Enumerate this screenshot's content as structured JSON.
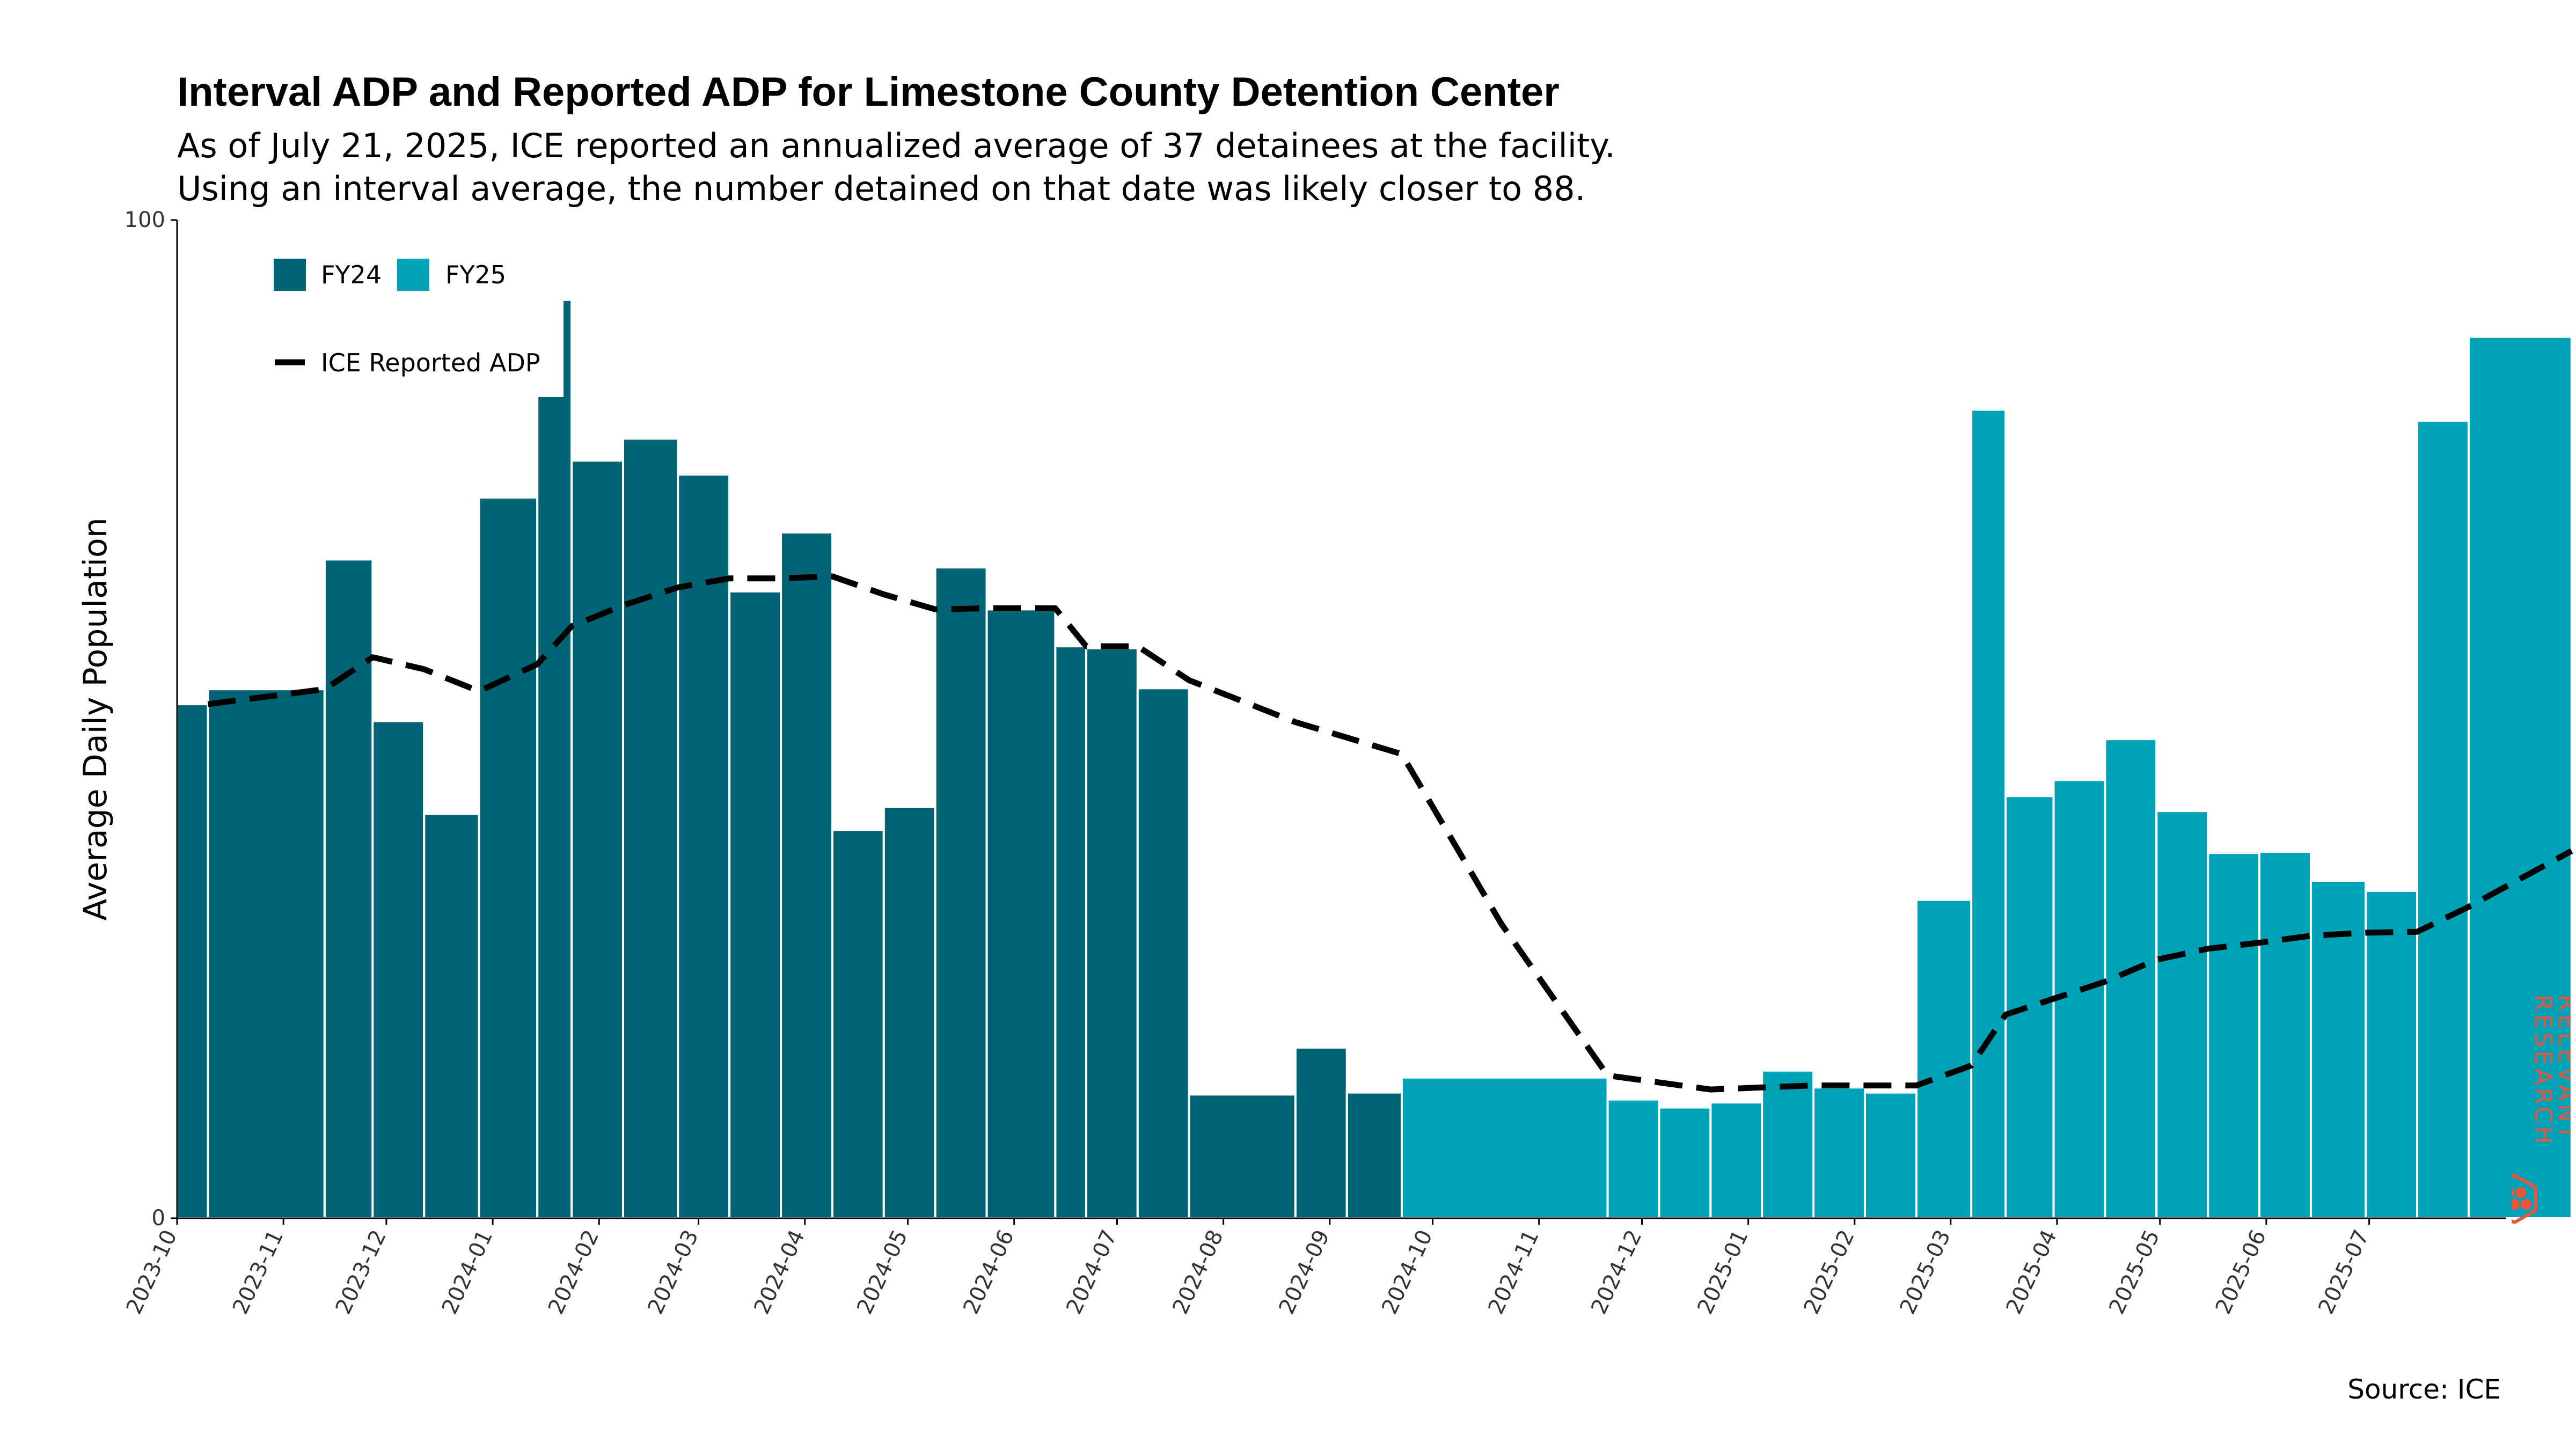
{
  "chart_data": {
    "type": "bar",
    "title": "Interval ADP and Reported ADP for Limestone County Detention Center",
    "subtitle_lines": [
      "As of July 21, 2025, ICE reported an annualized average of 37 detainees at the facility.",
      "Using an interval average, the number detained on that date was likely closer to 88."
    ],
    "ylabel": "Average Daily Population",
    "ylim": [
      0,
      100
    ],
    "y_ticks": [
      "0",
      "100"
    ],
    "x_ticks": [
      "2023-10",
      "2023-11",
      "2023-12",
      "2024-01",
      "2024-02",
      "2024-03",
      "2024-04",
      "2024-05",
      "2024-06",
      "2024-07",
      "2024-08",
      "2024-09",
      "2024-10",
      "2024-11",
      "2024-12",
      "2025-01",
      "2025-02",
      "2025-03",
      "2025-04",
      "2025-05",
      "2025-06",
      "2025-07"
    ],
    "x_range": [
      "2023-10-01",
      "2025-07-30"
    ],
    "legend": {
      "position": "top-left",
      "fy24_label": "FY24",
      "fy25_label": "FY25",
      "line_label": "ICE Reported ADP"
    },
    "colors": {
      "FY24": "#006474",
      "FY25": "#00A2B8",
      "line": "#000000",
      "brand": "#E8553A"
    },
    "bars": [
      {
        "start": "2023-10-01",
        "end": "2023-10-10",
        "value": 51.5,
        "fy": "FY24"
      },
      {
        "start": "2023-10-10",
        "end": "2023-11-13",
        "value": 53.0,
        "fy": "FY24"
      },
      {
        "start": "2023-11-13",
        "end": "2023-11-27",
        "value": 66.0,
        "fy": "FY24"
      },
      {
        "start": "2023-11-27",
        "end": "2023-12-12",
        "value": 49.8,
        "fy": "FY24"
      },
      {
        "start": "2023-12-12",
        "end": "2023-12-28",
        "value": 40.5,
        "fy": "FY24"
      },
      {
        "start": "2023-12-28",
        "end": "2024-01-14",
        "value": 72.2,
        "fy": "FY24"
      },
      {
        "start": "2024-01-14",
        "end": "2024-01-24",
        "value": 92.0,
        "fy": "FY24"
      },
      {
        "start": "2024-01-24",
        "end": "2024-02-08",
        "value": 75.9,
        "fy": "FY24"
      },
      {
        "start": "2024-02-08",
        "end": "2024-02-24",
        "value": 78.1,
        "fy": "FY24"
      },
      {
        "start": "2024-02-24",
        "end": "2024-03-10",
        "value": 74.5,
        "fy": "FY24"
      },
      {
        "start": "2024-03-10",
        "end": "2024-03-25",
        "value": 62.8,
        "fy": "FY24"
      },
      {
        "start": "2024-03-25",
        "end": "2024-04-09",
        "value": 68.7,
        "fy": "FY24"
      },
      {
        "start": "2024-04-09",
        "end": "2024-04-24",
        "value": 38.9,
        "fy": "FY24"
      },
      {
        "start": "2024-04-24",
        "end": "2024-05-09",
        "value": 41.2,
        "fy": "FY24"
      },
      {
        "start": "2024-05-09",
        "end": "2024-05-24",
        "value": 65.2,
        "fy": "FY24"
      },
      {
        "start": "2024-05-24",
        "end": "2024-06-13",
        "value": 61.0,
        "fy": "FY24"
      },
      {
        "start": "2024-06-13",
        "end": "2024-06-22",
        "value": 57.3,
        "fy": "FY24"
      },
      {
        "start": "2024-06-22",
        "end": "2024-07-07",
        "value": 57.1,
        "fy": "FY24"
      },
      {
        "start": "2024-07-07",
        "end": "2024-07-22",
        "value": 53.1,
        "fy": "FY24"
      },
      {
        "start": "2024-07-22",
        "end": "2024-08-22",
        "value": 12.4,
        "fy": "FY24"
      },
      {
        "start": "2024-08-22",
        "end": "2024-09-06",
        "value": 17.1,
        "fy": "FY24"
      },
      {
        "start": "2024-09-06",
        "end": "2024-09-22",
        "value": 12.6,
        "fy": "FY24"
      },
      {
        "start": "2024-09-22",
        "end": "2024-11-21",
        "value": 14.1,
        "fy": "FY25"
      },
      {
        "start": "2024-11-21",
        "end": "2024-12-06",
        "value": 11.9,
        "fy": "FY25"
      },
      {
        "start": "2024-12-06",
        "end": "2024-12-21",
        "value": 11.1,
        "fy": "FY25"
      },
      {
        "start": "2024-12-21",
        "end": "2025-01-05",
        "value": 11.6,
        "fy": "FY25"
      },
      {
        "start": "2025-01-05",
        "end": "2025-01-20",
        "value": 14.8,
        "fy": "FY25"
      },
      {
        "start": "2025-01-20",
        "end": "2025-02-04",
        "value": 13.1,
        "fy": "FY25"
      },
      {
        "start": "2025-02-04",
        "end": "2025-02-19",
        "value": 12.6,
        "fy": "FY25"
      },
      {
        "start": "2025-02-19",
        "end": "2025-03-07",
        "value": 31.9,
        "fy": "FY25"
      },
      {
        "start": "2025-03-07",
        "end": "2025-03-17",
        "value": 81.0,
        "fy": "FY25"
      },
      {
        "start": "2025-03-17",
        "end": "2025-03-31",
        "value": 42.3,
        "fy": "FY25"
      },
      {
        "start": "2025-03-31",
        "end": "2025-04-15",
        "value": 43.9,
        "fy": "FY25"
      },
      {
        "start": "2025-04-15",
        "end": "2025-04-30",
        "value": 48.0,
        "fy": "FY25"
      },
      {
        "start": "2025-04-30",
        "end": "2025-05-15",
        "value": 40.8,
        "fy": "FY25"
      },
      {
        "start": "2025-05-15",
        "end": "2025-05-30",
        "value": 36.6,
        "fy": "FY25"
      },
      {
        "start": "2025-05-30",
        "end": "2025-06-14",
        "value": 36.7,
        "fy": "FY25"
      },
      {
        "start": "2025-06-14",
        "end": "2025-06-30",
        "value": 33.8,
        "fy": "FY25"
      },
      {
        "start": "2025-06-30",
        "end": "2025-07-15",
        "value": 32.8,
        "fy": "FY25"
      },
      {
        "start": "2025-07-15",
        "end": "2025-07-30",
        "value": 79.9,
        "fy": "FY25"
      },
      {
        "start": "2025-07-30",
        "end": "2025-08-29",
        "value": 88.3,
        "fy": "FY25"
      }
    ],
    "reported_adp": [
      {
        "date": "2023-10-10",
        "value": 51.5
      },
      {
        "date": "2023-11-13",
        "value": 53.0
      },
      {
        "date": "2023-11-27",
        "value": 56.2
      },
      {
        "date": "2023-12-12",
        "value": 55.0
      },
      {
        "date": "2023-12-28",
        "value": 52.8
      },
      {
        "date": "2024-01-14",
        "value": 55.5
      },
      {
        "date": "2024-01-24",
        "value": 59.3
      },
      {
        "date": "2024-02-08",
        "value": 61.4
      },
      {
        "date": "2024-02-24",
        "value": 63.2
      },
      {
        "date": "2024-03-10",
        "value": 64.1
      },
      {
        "date": "2024-03-25",
        "value": 64.1
      },
      {
        "date": "2024-04-09",
        "value": 64.3
      },
      {
        "date": "2024-04-24",
        "value": 62.5
      },
      {
        "date": "2024-05-09",
        "value": 61.0
      },
      {
        "date": "2024-05-24",
        "value": 61.1
      },
      {
        "date": "2024-06-13",
        "value": 61.1
      },
      {
        "date": "2024-06-22",
        "value": 57.3
      },
      {
        "date": "2024-07-07",
        "value": 57.3
      },
      {
        "date": "2024-07-22",
        "value": 53.9
      },
      {
        "date": "2024-08-22",
        "value": 49.7
      },
      {
        "date": "2024-09-22",
        "value": 46.5
      },
      {
        "date": "2024-10-21",
        "value": 29.5
      },
      {
        "date": "2024-11-21",
        "value": 14.3
      },
      {
        "date": "2024-12-21",
        "value": 12.9
      },
      {
        "date": "2025-01-05",
        "value": 13.1
      },
      {
        "date": "2025-01-20",
        "value": 13.3
      },
      {
        "date": "2025-02-19",
        "value": 13.3
      },
      {
        "date": "2025-03-07",
        "value": 15.3
      },
      {
        "date": "2025-03-17",
        "value": 20.4
      },
      {
        "date": "2025-04-15",
        "value": 23.7
      },
      {
        "date": "2025-04-30",
        "value": 25.9
      },
      {
        "date": "2025-05-15",
        "value": 27.0
      },
      {
        "date": "2025-05-30",
        "value": 27.6
      },
      {
        "date": "2025-06-14",
        "value": 28.3
      },
      {
        "date": "2025-06-30",
        "value": 28.6
      },
      {
        "date": "2025-07-15",
        "value": 28.7
      },
      {
        "date": "2025-07-30",
        "value": 31.2
      },
      {
        "date": "2025-08-29",
        "value": 36.8
      }
    ]
  },
  "source_note": "Source: ICE",
  "brand": {
    "line1": "RELEVANT",
    "line2": "RESEARCH"
  }
}
